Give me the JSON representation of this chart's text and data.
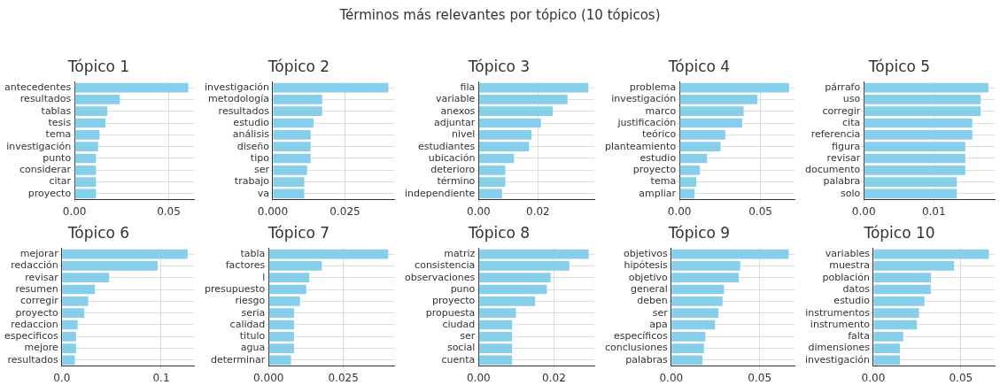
{
  "chart_data": [
    {
      "type": "other",
      "title": "Términos más relevantes por tópico (10 tópicos)"
    },
    {
      "type": "bar",
      "orientation": "horizontal",
      "title": "Tópico 1",
      "categories": [
        "antecedentes",
        "resultados",
        "tablas",
        "tesis",
        "tema",
        "investigación",
        "punto",
        "considerar",
        "citar",
        "proyecto"
      ],
      "values": [
        0.0604,
        0.024,
        0.0174,
        0.0165,
        0.0133,
        0.0125,
        0.0114,
        0.0114,
        0.0114,
        0.0114
      ],
      "color": "#87ceeb",
      "xlim": [
        0,
        0.0634
      ],
      "xticks": [
        {
          "value": 0,
          "label": "0.00"
        },
        {
          "value": 0.05,
          "label": "0.05"
        }
      ],
      "grid": true
    },
    {
      "type": "bar",
      "orientation": "horizontal",
      "title": "Tópico 2",
      "categories": [
        "investigación",
        "metodología",
        "resultados",
        "estudio",
        "análisis",
        "diseño",
        "tipo",
        "ser",
        "trabajo",
        "va"
      ],
      "values": [
        0.04,
        0.0171,
        0.0171,
        0.0141,
        0.0131,
        0.0131,
        0.0131,
        0.0119,
        0.0109,
        0.0109
      ],
      "color": "#87ceeb",
      "xlim": [
        0,
        0.042
      ],
      "xticks": [
        {
          "value": 0,
          "label": "0.000"
        },
        {
          "value": 0.025,
          "label": "0.025"
        }
      ],
      "grid": true
    },
    {
      "type": "bar",
      "orientation": "horizontal",
      "title": "Tópico 3",
      "categories": [
        "fila",
        "variable",
        "anexos",
        "adjuntar",
        "nivel",
        "estudiantes",
        "ubicación",
        "deterioro",
        "término",
        "independiente"
      ],
      "values": [
        0.037,
        0.03,
        0.025,
        0.021,
        0.0178,
        0.017,
        0.0119,
        0.009,
        0.009,
        0.0079
      ],
      "color": "#87ceeb",
      "xlim": [
        0,
        0.039
      ],
      "xticks": [
        {
          "value": 0,
          "label": "0.00"
        },
        {
          "value": 0.02,
          "label": "0.02"
        }
      ],
      "grid": true
    },
    {
      "type": "bar",
      "orientation": "horizontal",
      "title": "Tópico 4",
      "categories": [
        "problema",
        "investigación",
        "marco",
        "justificación",
        "teórico",
        "planteamiento",
        "estudio",
        "proyecto",
        "tema",
        "ampliar"
      ],
      "values": [
        0.0676,
        0.048,
        0.0396,
        0.0387,
        0.0283,
        0.0254,
        0.017,
        0.0126,
        0.0104,
        0.0093
      ],
      "color": "#87ceeb",
      "xlim": [
        0,
        0.071
      ],
      "xticks": [
        {
          "value": 0,
          "label": "0.00"
        },
        {
          "value": 0.05,
          "label": "0.05"
        }
      ],
      "grid": true
    },
    {
      "type": "bar",
      "orientation": "horizontal",
      "title": "Tópico 5",
      "categories": [
        "párrafo",
        "uso",
        "corregir",
        "cita",
        "referencia",
        "figura",
        "revisar",
        "documento",
        "palabra",
        "solo"
      ],
      "values": [
        0.0178,
        0.0167,
        0.0167,
        0.0155,
        0.0155,
        0.0145,
        0.0145,
        0.0145,
        0.0133,
        0.0133
      ],
      "color": "#87ceeb",
      "xlim": [
        0,
        0.0187
      ],
      "xticks": [
        {
          "value": 0,
          "label": "0.00"
        },
        {
          "value": 0.01,
          "label": "0.01"
        }
      ],
      "grid": true
    },
    {
      "type": "bar",
      "orientation": "horizontal",
      "title": "Tópico 6",
      "categories": [
        "mejorar",
        "redacción",
        "revisar",
        "resumen",
        "corregir",
        "proyecto",
        "redaccion",
        "especificos",
        "mejore",
        "resultados"
      ],
      "values": [
        0.1266,
        0.0964,
        0.0476,
        0.0333,
        0.0266,
        0.0226,
        0.0159,
        0.0143,
        0.0143,
        0.0131
      ],
      "color": "#87ceeb",
      "xlim": [
        0,
        0.133
      ],
      "xticks": [
        {
          "value": 0,
          "label": "0.0"
        },
        {
          "value": 0.1,
          "label": "0.1"
        }
      ],
      "grid": true
    },
    {
      "type": "bar",
      "orientation": "horizontal",
      "title": "Tópico 7",
      "categories": [
        "tabla",
        "factores",
        "l",
        "presupuesto",
        "riesgo",
        "seria",
        "calidad",
        "titulo",
        "agua",
        "determinar"
      ],
      "values": [
        0.04,
        0.0178,
        0.0136,
        0.0126,
        0.0105,
        0.0085,
        0.0085,
        0.0085,
        0.0085,
        0.0075
      ],
      "color": "#87ceeb",
      "xlim": [
        0,
        0.042
      ],
      "xticks": [
        {
          "value": 0,
          "label": "0.000"
        },
        {
          "value": 0.025,
          "label": "0.025"
        }
      ],
      "grid": true
    },
    {
      "type": "bar",
      "orientation": "horizontal",
      "title": "Tópico 8",
      "categories": [
        "matriz",
        "consistencia",
        "observaciones",
        "puno",
        "proyecto",
        "propuesta",
        "ciudad",
        "ser",
        "social",
        "cuenta"
      ],
      "values": [
        0.0292,
        0.0241,
        0.0191,
        0.0181,
        0.015,
        0.0099,
        0.0089,
        0.0089,
        0.0089,
        0.0089
      ],
      "color": "#87ceeb",
      "xlim": [
        0,
        0.0307
      ],
      "xticks": [
        {
          "value": 0,
          "label": "0.00"
        },
        {
          "value": 0.02,
          "label": "0.02"
        }
      ],
      "grid": true
    },
    {
      "type": "bar",
      "orientation": "horizontal",
      "title": "Tópico 9",
      "categories": [
        "objetivos",
        "hipótesis",
        "objetivo",
        "general",
        "deben",
        "ser",
        "apa",
        "específicos",
        "conclusiones",
        "palabras"
      ],
      "values": [
        0.0664,
        0.039,
        0.0382,
        0.0298,
        0.029,
        0.0267,
        0.0248,
        0.0193,
        0.0185,
        0.0176
      ],
      "color": "#87ceeb",
      "xlim": [
        0,
        0.0697
      ],
      "xticks": [
        {
          "value": 0,
          "label": "0.00"
        },
        {
          "value": 0.05,
          "label": "0.05"
        }
      ],
      "grid": true
    },
    {
      "type": "bar",
      "orientation": "horizontal",
      "title": "Tópico 10",
      "categories": [
        "variables",
        "muestra",
        "población",
        "datos",
        "estudio",
        "instrumentos",
        "instrumento",
        "falta",
        "dimensiones",
        "investigación"
      ],
      "values": [
        0.066,
        0.0461,
        0.0329,
        0.0329,
        0.0292,
        0.0261,
        0.0249,
        0.0171,
        0.0152,
        0.0152
      ],
      "color": "#87ceeb",
      "xlim": [
        0,
        0.0693
      ],
      "xticks": [
        {
          "value": 0,
          "label": "0.00"
        },
        {
          "value": 0.05,
          "label": "0.05"
        }
      ],
      "grid": true
    }
  ]
}
